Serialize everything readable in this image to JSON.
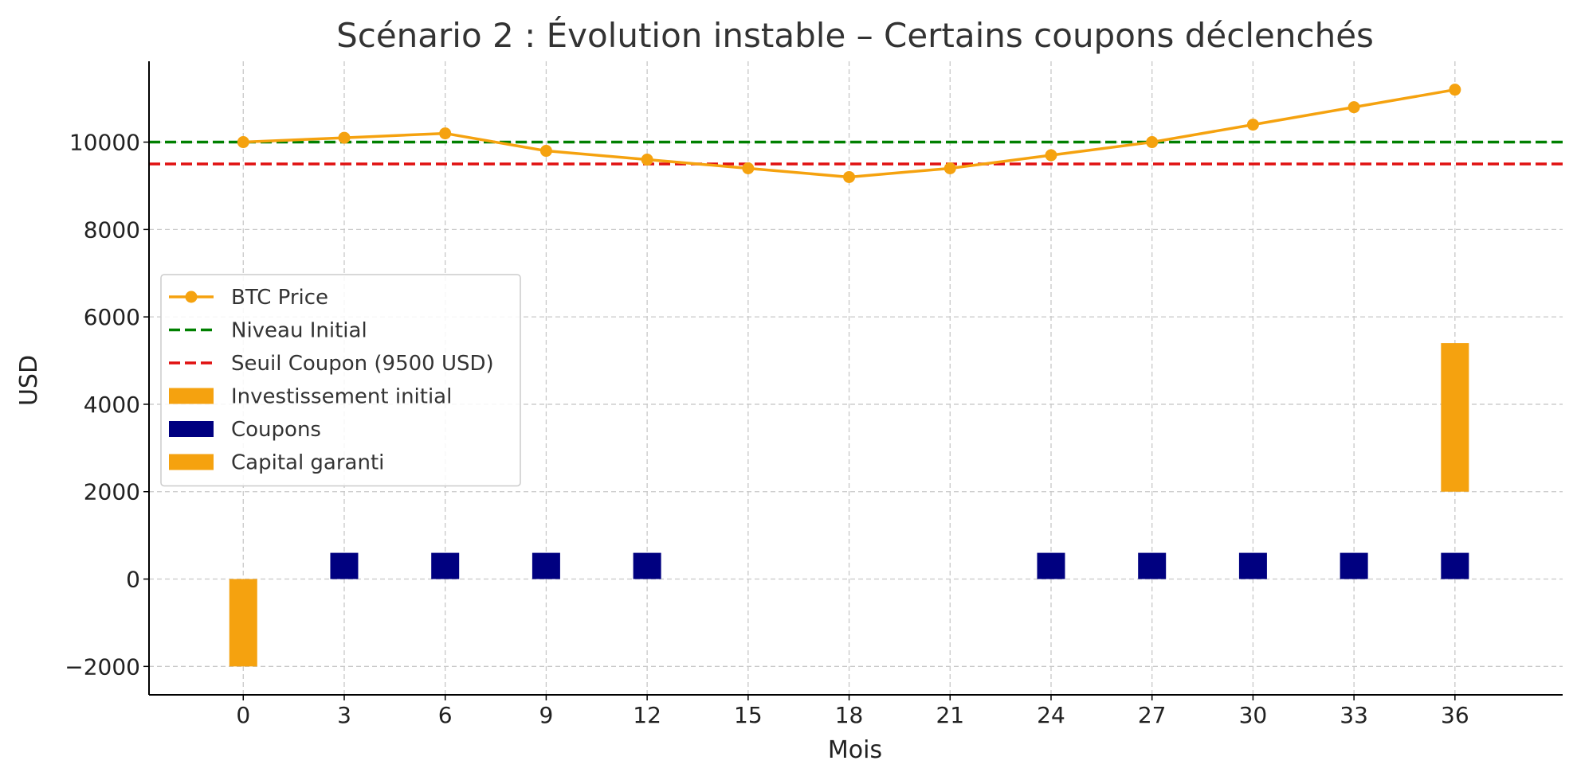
{
  "chart_data": {
    "type": "line",
    "title": "Scénario 2 : Évolution instable – Certains coupons déclenchés",
    "xlabel": "Mois",
    "ylabel": "USD",
    "xlim": [
      -2.8,
      39.2
    ],
    "ylim": [
      -2650,
      11850
    ],
    "x_ticks": [
      0,
      3,
      6,
      9,
      12,
      15,
      18,
      21,
      24,
      27,
      30,
      33,
      36
    ],
    "y_ticks": [
      -2000,
      0,
      2000,
      4000,
      6000,
      8000,
      10000
    ],
    "y_tick_labels": [
      "−2000",
      "0",
      "2000",
      "4000",
      "6000",
      "8000",
      "10000"
    ],
    "grid": true,
    "legend_position": "center-left",
    "series": [
      {
        "name": "BTC Price",
        "kind": "line",
        "color": "#f5a20f",
        "marker": "circle",
        "x": [
          0,
          3,
          6,
          9,
          12,
          15,
          18,
          21,
          24,
          27,
          30,
          33,
          36
        ],
        "y": [
          10000,
          10100,
          10200,
          9800,
          9600,
          9400,
          9200,
          9400,
          9700,
          10000,
          10400,
          10800,
          11200
        ]
      },
      {
        "name": "Niveau Initial",
        "kind": "hline",
        "color": "#008000",
        "y": 10000
      },
      {
        "name": "Seuil Coupon (9500 USD)",
        "kind": "hline",
        "color": "#e01010",
        "y": 9500
      },
      {
        "name": "Investissement initial",
        "kind": "bar",
        "color": "#f5a20f",
        "bars": [
          {
            "x": 0,
            "bottom": 0,
            "value": -2000
          }
        ]
      },
      {
        "name": "Coupons",
        "kind": "bar",
        "color": "#000080",
        "bars": [
          {
            "x": 3,
            "bottom": 0,
            "value": 600
          },
          {
            "x": 6,
            "bottom": 0,
            "value": 600
          },
          {
            "x": 9,
            "bottom": 0,
            "value": 600
          },
          {
            "x": 12,
            "bottom": 0,
            "value": 600
          },
          {
            "x": 24,
            "bottom": 0,
            "value": 600
          },
          {
            "x": 27,
            "bottom": 0,
            "value": 600
          },
          {
            "x": 30,
            "bottom": 0,
            "value": 600
          },
          {
            "x": 33,
            "bottom": 0,
            "value": 600
          },
          {
            "x": 36,
            "bottom": 0,
            "value": 600
          }
        ]
      },
      {
        "name": "Capital garanti",
        "kind": "bar",
        "color": "#f5a20f",
        "bars": [
          {
            "x": 36,
            "bottom": 2000,
            "value": 3400
          }
        ]
      }
    ]
  }
}
